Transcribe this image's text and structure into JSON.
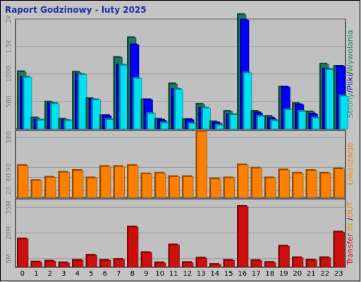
{
  "chart_data": {
    "type": "bar",
    "title": "Raport Godzinowy -  luty 2025",
    "categories": [
      "0",
      "1",
      "2",
      "3",
      "4",
      "5",
      "6",
      "7",
      "8",
      "9",
      "10",
      "11",
      "12",
      "13",
      "14",
      "15",
      "16",
      "17",
      "18",
      "19",
      "20",
      "21",
      "22",
      "23"
    ],
    "panels": [
      {
        "id": "hits",
        "ylim": [
          0,
          2000
        ],
        "ticks": [
          {
            "value": 500,
            "label": "500"
          },
          {
            "value": 1000,
            "label": "1000"
          },
          {
            "value": 1500,
            "label": "1.5k"
          },
          {
            "value": 2000,
            "label": "2k"
          }
        ],
        "side_label": [
          {
            "text": "Strony",
            "color": "#00a0a0"
          },
          {
            "text": "/",
            "color": "#000000"
          },
          {
            "text": "Pliki",
            "color": "#0000cc"
          },
          {
            "text": "/",
            "color": "#000000"
          },
          {
            "text": "Wywołania",
            "color": "#1a8a6a"
          }
        ],
        "series": [
          {
            "key": "hits",
            "color": "#1e7a5e",
            "values": [
              1040,
              200,
              490,
              180,
              1030,
              550,
              240,
              1300,
              1660,
              530,
              180,
              820,
              170,
              450,
              130,
              320,
              2080,
              320,
              230,
              760,
              460,
              310,
              1180,
              1140
            ]
          },
          {
            "key": "files",
            "color": "#0000ff",
            "values": [
              940,
              160,
              460,
              150,
              990,
              530,
              240,
              1160,
              1530,
              530,
              160,
              720,
              170,
              380,
              110,
              260,
              1980,
              290,
              190,
              760,
              440,
              270,
              1090,
              1140
            ]
          },
          {
            "key": "pages",
            "color": "#00e0f0",
            "values": [
              940,
              160,
              460,
              150,
              990,
              530,
              170,
              1160,
              920,
              280,
              110,
              720,
              100,
              380,
              70,
              260,
              1020,
              230,
              150,
              350,
              320,
              200,
              1080,
              600
            ]
          }
        ]
      },
      {
        "id": "visits",
        "ylim": [
          0,
          200
        ],
        "ticks": [
          {
            "value": 20,
            "label": "20"
          },
          {
            "value": 60,
            "label": "60"
          },
          {
            "value": 90,
            "label": "90"
          },
          {
            "value": 180,
            "label": "180"
          }
        ],
        "side_label": [
          {
            "text": "Lokalizacje",
            "color": "#ff8000"
          }
        ],
        "series": [
          {
            "key": "visits",
            "color": "#ff8000",
            "values": [
              95,
              50,
              60,
              75,
              80,
              58,
              92,
              92,
              95,
              70,
              72,
              62,
              62,
              197,
              55,
              58,
              97,
              87,
              58,
              82,
              72,
              80,
              72,
              85
            ]
          }
        ]
      },
      {
        "id": "transfer",
        "ylim": [
          0,
          40
        ],
        "ticks": [
          {
            "value": 5,
            "label": "5M"
          },
          {
            "value": 20,
            "label": "20M"
          },
          {
            "value": 35,
            "label": "35M"
          }
        ],
        "side_label": [
          {
            "text": "Transfer",
            "color": "#cc0000"
          },
          {
            "text": "  IN",
            "color": "#e0a000"
          },
          {
            "text": " /",
            "color": "#000000"
          },
          {
            "text": "OUT",
            "color": "#ff8000"
          }
        ],
        "series": [
          {
            "key": "transfer",
            "color": "#cc1010",
            "values": [
              16.5,
              3,
              3.5,
              2.5,
              4,
              7,
              4,
              4.5,
              23.5,
              8.5,
              2.5,
              13,
              2.7,
              5.3,
              1.6,
              4,
              35.5,
              3.8,
              2.8,
              12.3,
              5.5,
              4.1,
              5.5,
              20.5
            ]
          }
        ]
      }
    ]
  }
}
